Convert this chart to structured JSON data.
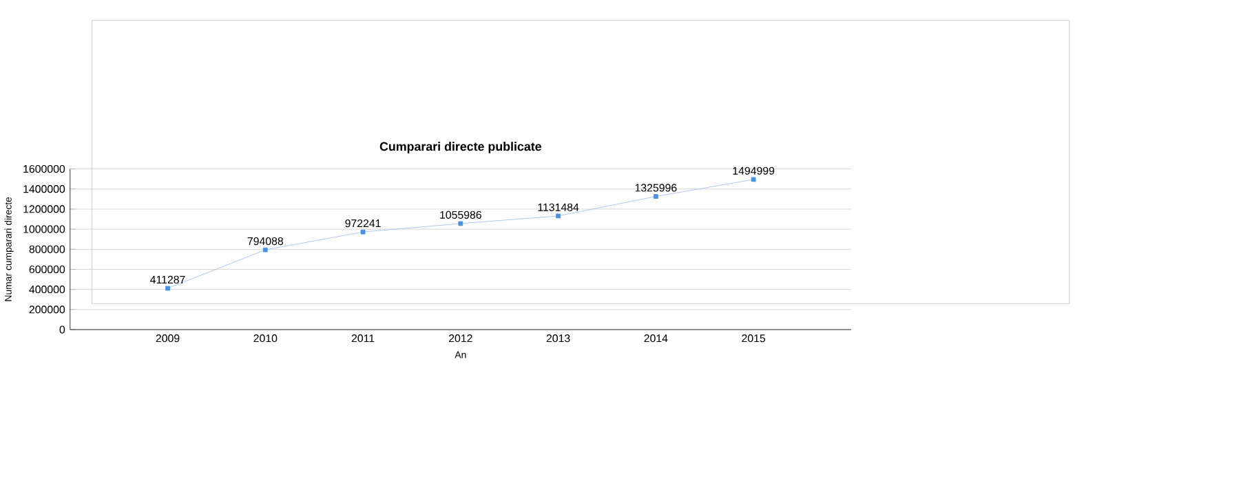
{
  "chart_data": {
    "type": "line",
    "title": "Cumparari directe publicate",
    "xlabel": "An",
    "ylabel": "Numar cumparari directe",
    "categories": [
      "2009",
      "2010",
      "2011",
      "2012",
      "2013",
      "2014",
      "2015"
    ],
    "values": [
      411287,
      794088,
      972241,
      1055986,
      1131484,
      1325996,
      1494999
    ],
    "color": "#4a90e2",
    "ylim": [
      0,
      1600000
    ],
    "yticks": [
      0,
      200000,
      400000,
      600000,
      800000,
      1000000,
      1200000,
      1400000,
      1600000
    ],
    "grid": "y",
    "marker": "square",
    "data_labels": true
  }
}
